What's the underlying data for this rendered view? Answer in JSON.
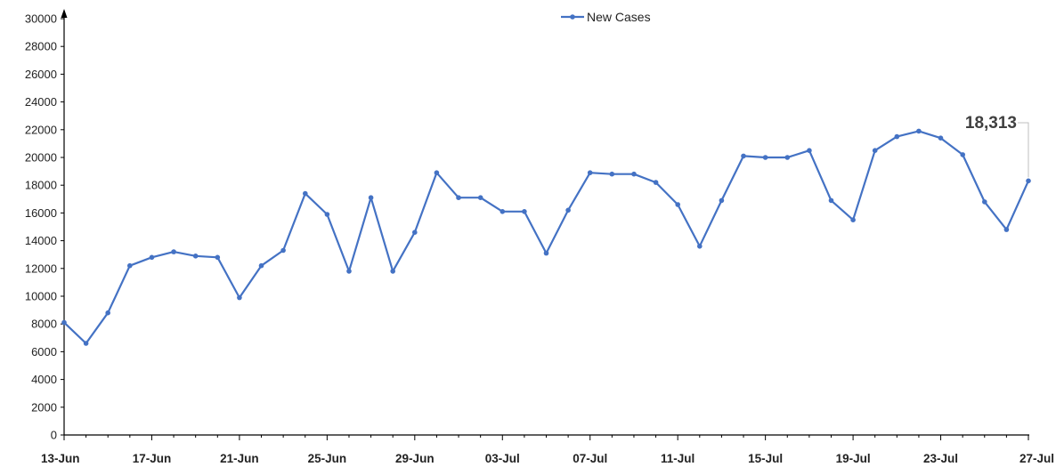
{
  "chart_data": {
    "type": "line",
    "title": "",
    "xlabel": "",
    "ylabel": "",
    "ylim": [
      0,
      30000
    ],
    "yticks": [
      0,
      2000,
      4000,
      6000,
      8000,
      10000,
      12000,
      14000,
      16000,
      18000,
      20000,
      22000,
      24000,
      26000,
      28000,
      30000
    ],
    "xtick_labels": [
      "13-Jun",
      "17-Jun",
      "21-Jun",
      "25-Jun",
      "29-Jun",
      "03-Jul",
      "07-Jul",
      "11-Jul",
      "15-Jul",
      "19-Jul",
      "23-Jul",
      "27-Jul"
    ],
    "x": [
      "13-Jun",
      "14-Jun",
      "15-Jun",
      "16-Jun",
      "17-Jun",
      "18-Jun",
      "19-Jun",
      "20-Jun",
      "21-Jun",
      "22-Jun",
      "23-Jun",
      "24-Jun",
      "25-Jun",
      "26-Jun",
      "27-Jun",
      "28-Jun",
      "29-Jun",
      "30-Jun",
      "01-Jul",
      "02-Jul",
      "03-Jul",
      "04-Jul",
      "05-Jul",
      "06-Jul",
      "07-Jul",
      "08-Jul",
      "09-Jul",
      "10-Jul",
      "11-Jul",
      "12-Jul",
      "13-Jul",
      "14-Jul",
      "15-Jul",
      "16-Jul",
      "17-Jul",
      "18-Jul",
      "19-Jul",
      "20-Jul",
      "21-Jul",
      "22-Jul",
      "23-Jul",
      "24-Jul",
      "25-Jul",
      "26-Jul",
      "27-Jul"
    ],
    "series": [
      {
        "name": "New Cases",
        "color": "#4472c4",
        "values": [
          8100,
          6600,
          8800,
          12200,
          12800,
          13200,
          12900,
          12800,
          9900,
          12200,
          13300,
          17400,
          15900,
          11800,
          17100,
          11800,
          14600,
          18900,
          17100,
          17100,
          16100,
          16100,
          13100,
          16200,
          18900,
          18800,
          18800,
          18200,
          16600,
          13600,
          16900,
          20100,
          20000,
          20000,
          20500,
          16900,
          15500,
          20500,
          21500,
          21900,
          21400,
          20200,
          16800,
          14800,
          18313
        ]
      }
    ],
    "legend": {
      "position": "top",
      "label": "New Cases"
    },
    "annotation": {
      "text": "18,313",
      "x": "27-Jul",
      "y": 18313
    },
    "grid": false
  }
}
